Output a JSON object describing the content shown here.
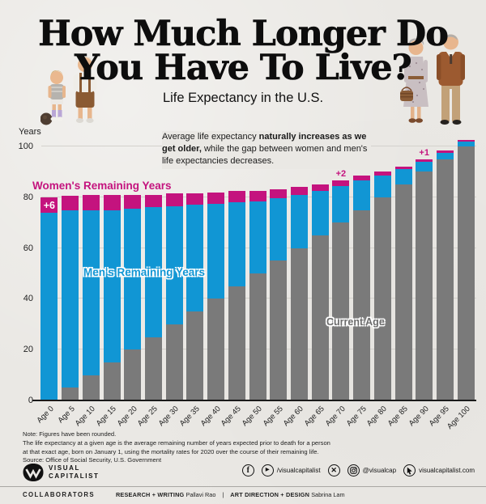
{
  "header": {
    "title_line1": "How Much Longer Do",
    "title_line2": "You Have To Live?",
    "subtitle": "Life Expectancy in the U.S."
  },
  "annotation": {
    "part1": "Average life expectancy ",
    "bold": "naturally increases as we get older,",
    "part2": " while the gap between women and men's life expectancies decreases."
  },
  "chart_data": {
    "type": "bar",
    "stacked": true,
    "title": "Life Expectancy in the U.S.",
    "ylabel": "Years",
    "ylim": [
      0,
      110
    ],
    "yticks": [
      0,
      20,
      40,
      60,
      80,
      100
    ],
    "grid": true,
    "categories": [
      "Age 0",
      "Age 5",
      "Age 10",
      "Age 15",
      "Age 20",
      "Age 25",
      "Age 30",
      "Age 35",
      "Age 40",
      "Age 45",
      "Age 50",
      "Age 55",
      "Age 60",
      "Age 65",
      "Age 70",
      "Age 75",
      "Age 80",
      "Age 85",
      "Age 90",
      "Age 95",
      "Age 100"
    ],
    "series": [
      {
        "name": "Current Age",
        "color": "#7a7a7a",
        "values": [
          0,
          5,
          10,
          15,
          20,
          25,
          30,
          35,
          40,
          45,
          50,
          55,
          60,
          65,
          70,
          75,
          80,
          85,
          90,
          95,
          100
        ]
      },
      {
        "name": "Men's Remaining Years",
        "color": "#1196d4",
        "values": [
          74,
          70,
          65,
          60,
          55.5,
          51,
          46.5,
          42,
          37.5,
          33,
          28.5,
          24.5,
          21,
          17.5,
          14.5,
          11.5,
          8.5,
          6,
          4,
          2.5,
          2
        ]
      },
      {
        "name": "Women's Remaining Years",
        "color": "#c4137e",
        "values": [
          6,
          5.5,
          6,
          6,
          5.5,
          5,
          5,
          4.5,
          4.5,
          4.5,
          4,
          3.5,
          3,
          2.5,
          2,
          2,
          1.5,
          1,
          1,
          1,
          0.5
        ]
      }
    ],
    "totals": {
      "men": [
        74,
        75,
        75,
        75,
        75.5,
        76,
        76.5,
        77,
        77.5,
        78,
        78.5,
        79.5,
        81,
        82.5,
        84.5,
        86.5,
        88.5,
        91,
        94,
        97.5,
        102
      ],
      "women": [
        80,
        80.5,
        81,
        81,
        81,
        81,
        81.5,
        81.5,
        82,
        82.5,
        82.5,
        83,
        84,
        85,
        86.5,
        88.5,
        90,
        92,
        95,
        98.5,
        102.5
      ]
    },
    "bar_annotations": [
      {
        "index": 0,
        "label": "+6",
        "placement": "inside"
      },
      {
        "index": 14,
        "label": "+2",
        "placement": "above"
      },
      {
        "index": 18,
        "label": "+1",
        "placement": "above"
      }
    ],
    "series_labels": {
      "women": "Women's Remaining Years",
      "men": "Men's Remaining Years",
      "current": "Current Age"
    }
  },
  "notes": {
    "line1": "Note: Figures have been rounded.",
    "line2": "The life expectancy at a given age is the average remaining number of years expected prior to death for a person",
    "line3": "at that exact age, born on January 1, using the mortality rates for 2020 over the course of their remaining life.",
    "line4": "Source: Office of Social Security, U.S. Government"
  },
  "footer": {
    "logo_line1": "VISUAL",
    "logo_line2": "CAPITALIST",
    "socials": [
      {
        "icon": "facebook-icon",
        "label": ""
      },
      {
        "icon": "youtube-icon",
        "label": "/visualcapitalist"
      },
      {
        "icon": "x-icon",
        "label": ""
      },
      {
        "icon": "instagram-icon",
        "label": "@visualcap"
      },
      {
        "icon": "cursor-icon",
        "label": "visualcapitalist.com"
      }
    ],
    "collaborators_label": "COLLABORATORS",
    "research_label": "RESEARCH + WRITING",
    "research_name": "Pallavi Rao",
    "divider": "|",
    "art_label": "ART DIRECTION + DESIGN",
    "art_name": "Sabrina Lam"
  }
}
